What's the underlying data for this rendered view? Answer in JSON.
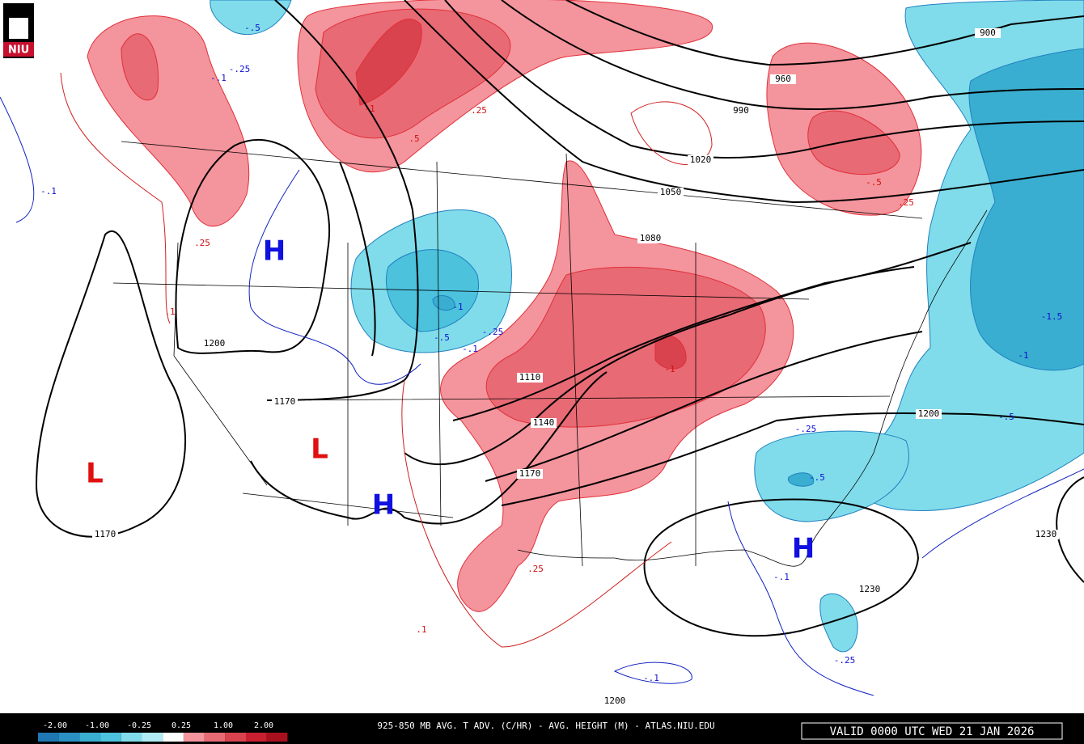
{
  "badge": "NIU",
  "pressure_centers": [
    {
      "label": "H"
    },
    {
      "label": "H"
    },
    {
      "label": "H"
    },
    {
      "label": "L"
    },
    {
      "label": "L"
    }
  ],
  "height_labels": [
    "1200",
    "1170",
    "1170",
    "1110",
    "1140",
    "1170",
    "1200",
    "1200",
    "1230",
    "1230",
    "1080",
    "1050",
    "1020",
    "990",
    "960",
    "900"
  ],
  "warm_advection_labels": [
    ".25",
    ".1",
    "-1",
    ".5",
    ".25",
    "-.5",
    ".25",
    "-1",
    ".25",
    ".1"
  ],
  "cold_advection_labels": [
    "-.5",
    "-.25",
    "-.1",
    "-.1",
    "-1",
    "-.5",
    "-.25",
    "-.1",
    "-.25",
    "-.5",
    "-.1",
    "-.25",
    "-.1",
    "-1.5",
    "-1",
    "-.5"
  ],
  "footer": {
    "colorbar_labels": [
      "-2.00",
      "-1.00",
      "-0.25",
      "0.25",
      "1.00",
      "2.00"
    ],
    "title": "925-850 MB AVG. T ADV. (C/HR) - AVG. HEIGHT (M) - ATLAS.NIU.EDU",
    "valid": "VALID 0000 UTC WED 21 JAN 2026"
  }
}
